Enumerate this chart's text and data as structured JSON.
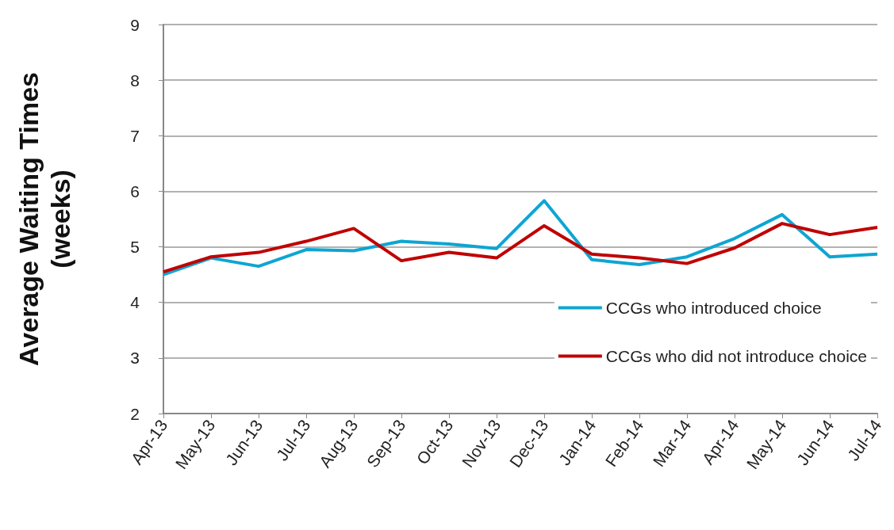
{
  "chart_data": {
    "type": "line",
    "ylabel": "Average Waiting Times\n(weeks)",
    "categories": [
      "Apr-13",
      "May-13",
      "Jun-13",
      "Jul-13",
      "Aug-13",
      "Sep-13",
      "Oct-13",
      "Nov-13",
      "Dec-13",
      "Jan-14",
      "Feb-14",
      "Mar-14",
      "Apr-14",
      "May-14",
      "Jun-14",
      "Jul-14"
    ],
    "series": [
      {
        "name": "CCGs who introduced choice",
        "color": "#0ea5d2",
        "values": [
          4.5,
          4.8,
          4.65,
          4.95,
          4.93,
          5.1,
          5.05,
          4.97,
          5.83,
          4.77,
          4.68,
          4.82,
          5.15,
          5.58,
          4.82,
          4.87
        ]
      },
      {
        "name": "CCGs who did not introduce choice",
        "color": "#c00000",
        "values": [
          4.55,
          4.82,
          4.9,
          5.1,
          5.33,
          4.75,
          4.9,
          4.8,
          5.38,
          4.87,
          4.8,
          4.7,
          4.98,
          5.42,
          5.22,
          5.35
        ]
      }
    ],
    "ylim": [
      2,
      9
    ],
    "yticks": [
      2,
      3,
      4,
      5,
      6,
      7,
      8,
      9
    ],
    "grid": "y",
    "legend": "right",
    "marker": "none",
    "line_style": "solid"
  }
}
